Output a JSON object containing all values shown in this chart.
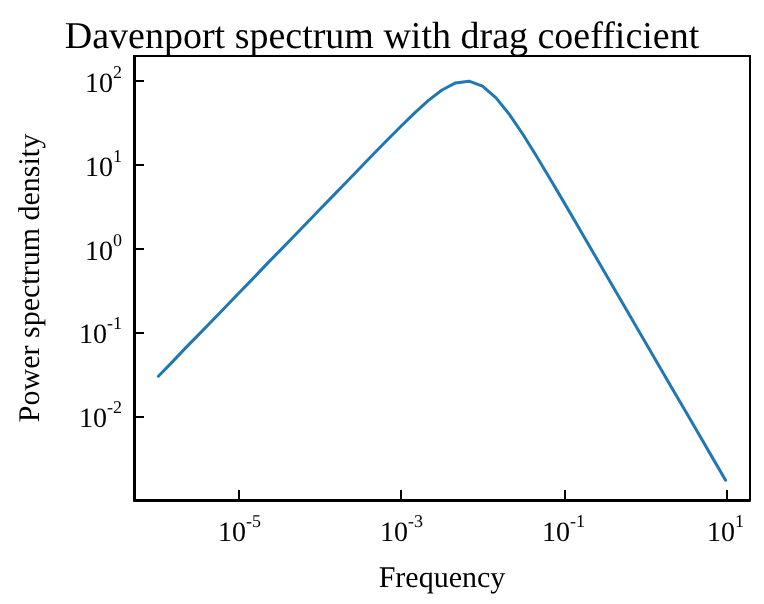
{
  "chart_data": {
    "type": "line",
    "title": "Davenport spectrum with drag coefficient",
    "xlabel": "Frequency",
    "ylabel": "Power spectrum density",
    "log": "xy",
    "grid": false,
    "marker": "none",
    "line_style": "solid",
    "xlim": [
      5e-07,
      20
    ],
    "ylim": [
      0.001,
      200
    ],
    "xticks": [
      {
        "value": 1e-05,
        "label": "10$^{-5}$"
      },
      {
        "value": 0.001,
        "label": "10$^{-3}$"
      },
      {
        "value": 0.1,
        "label": "10$^{-1}$"
      },
      {
        "value": 10,
        "label": "10$^{1}$"
      }
    ],
    "yticks": [
      {
        "value": 0.01,
        "label": "10$^{-2}$"
      },
      {
        "value": 0.1,
        "label": "10$^{-1}$"
      },
      {
        "value": 1,
        "label": "10$^{0}$"
      },
      {
        "value": 10,
        "label": "10$^{1}$"
      },
      {
        "value": 100,
        "label": "10$^{2}$"
      }
    ],
    "x": [
      1e-06,
      1.468e-06,
      2.154e-06,
      3.162e-06,
      4.642e-06,
      6.813e-06,
      1e-05,
      1.468e-05,
      2.154e-05,
      3.162e-05,
      4.642e-05,
      6.813e-05,
      0.0001,
      0.0001468,
      0.0002154,
      0.0003162,
      0.0004642,
      0.0006813,
      0.001,
      0.001468,
      0.002154,
      0.003162,
      0.004642,
      0.006813,
      0.01,
      0.01468,
      0.02154,
      0.03162,
      0.04642,
      0.06813,
      0.1,
      0.1468,
      0.2154,
      0.3162,
      0.4642,
      0.6813,
      1,
      1.468,
      2.154,
      3.162,
      4.642,
      6.813,
      10
    ],
    "series": [
      {
        "color": "#1f77b4",
        "values": [
          0.03,
          0.044,
          0.065,
          0.095,
          0.139,
          0.204,
          0.3,
          0.44,
          0.65,
          0.95,
          1.39,
          2.04,
          3.0,
          4.4,
          6.45,
          9.47,
          13.9,
          20.3,
          29.4,
          42.2,
          59.0,
          78.5,
          95.4,
          100,
          87.3,
          63.3,
          39.9,
          23.1,
          12.7,
          6.85,
          3.65,
          1.93,
          1.02,
          0.538,
          0.284,
          0.15,
          0.0792,
          0.0418,
          0.0221,
          0.0117,
          0.00616,
          0.00325,
          0.00172
        ]
      }
    ]
  }
}
